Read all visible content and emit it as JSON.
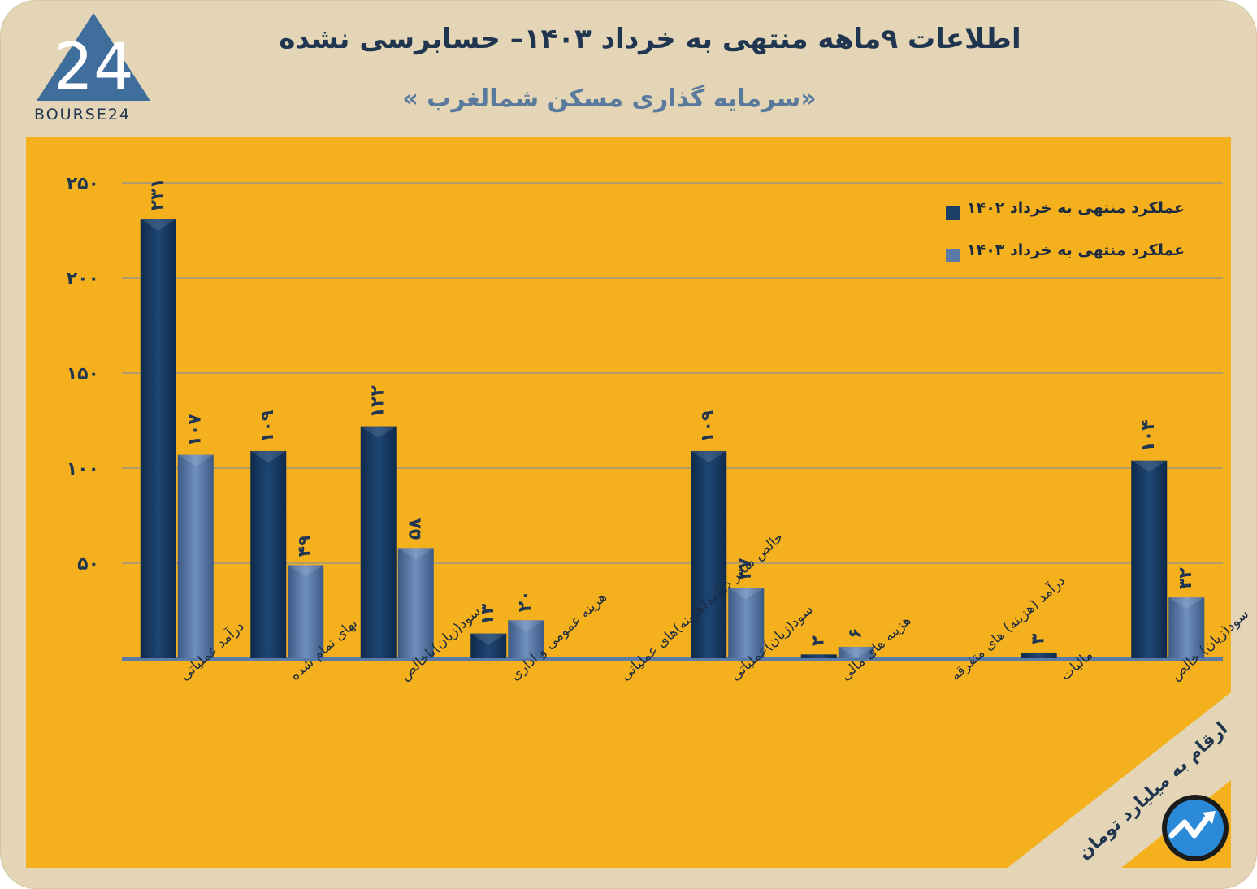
{
  "header": {
    "title": "اطلاعات ۹ماهه منتهی به خرداد ۱۴۰۳– حسابرسی نشده",
    "subtitle": "«سرمایه گذاری مسکن شمالغرب »",
    "logo_text": "BOURSE24",
    "logo_mark": "24"
  },
  "note": {
    "units": "ارقام به میلیارد تومان"
  },
  "colors": {
    "background": "#e3d5b5",
    "panel": "#f4b01d",
    "series_1402": "#1b3e66",
    "series_1403": "#5b7aa8",
    "text": "#1f3550"
  },
  "chart_data": {
    "type": "bar",
    "title": "اطلاعات ۹ماهه منتهی به خرداد ۱۴۰۳– حسابرسی نشده",
    "xlabel": "",
    "ylabel": "",
    "ylim": [
      0,
      250
    ],
    "yticks": [
      50,
      100,
      150,
      200,
      250
    ],
    "ytick_labels": [
      "۵۰",
      "۱۰۰",
      "۱۵۰",
      "۲۰۰",
      "۲۵۰"
    ],
    "grid": true,
    "legend_position": "top-right",
    "categories": [
      "درآمد عملیاتی",
      "بهای تمام شده",
      "سود(زیان)ناخالص",
      "هزینه عمومی و اداری",
      "خالص سایر درامد(هزینه)های عملیاتی",
      "سود(زیان)عملیاتی",
      "هزینه های مالی",
      "درآمد (هزینه) های متفرقه",
      "مالیات",
      "سود(زیان) خالص"
    ],
    "series": [
      {
        "name": "عملکرد منتهی به خرداد ۱۴۰۲",
        "values": [
          231,
          109,
          122,
          13,
          0,
          109,
          2,
          0,
          3,
          104
        ],
        "labels": [
          "۲۳۱",
          "۱۰۹",
          "۱۲۲",
          "۱۳",
          "",
          "۱۰۹",
          "۲",
          "",
          "۳",
          "۱۰۴"
        ]
      },
      {
        "name": "عملکرد منتهی به خرداد ۱۴۰۳",
        "values": [
          107,
          49,
          58,
          20,
          0,
          37,
          6,
          0,
          0,
          32
        ],
        "labels": [
          "۱۰۷",
          "۴۹",
          "۵۸",
          "۲۰",
          "",
          "۳۷",
          "۶",
          "",
          "",
          "۳۲"
        ]
      }
    ]
  }
}
